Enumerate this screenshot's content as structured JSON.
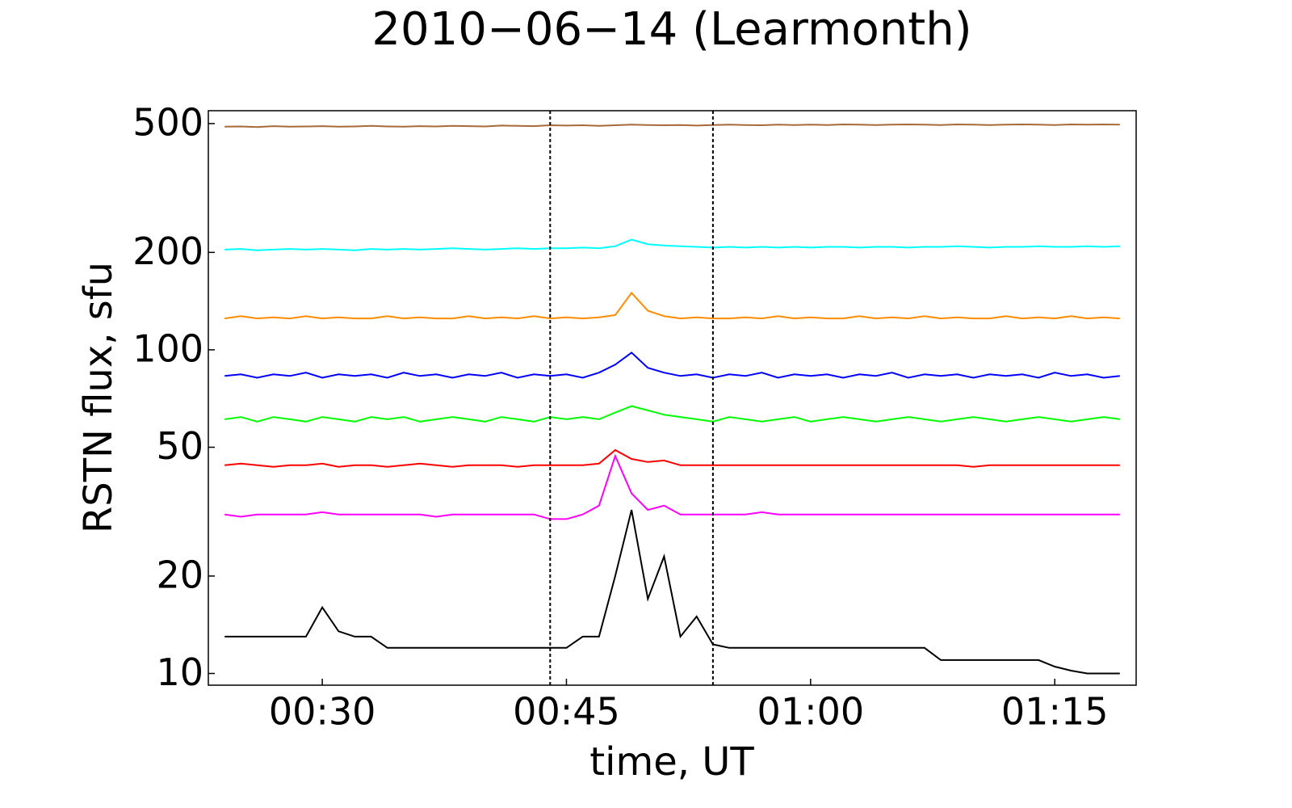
{
  "chart_data": {
    "type": "line",
    "title": "2010−06−14  (Learmonth)",
    "xlabel": "time, UT",
    "ylabel": "RSTN flux, sfu",
    "log_y": true,
    "grid": false,
    "xlim": [
      "00:23",
      "01:20"
    ],
    "xticks": [
      "00:30",
      "00:45",
      "01:00",
      "01:15"
    ],
    "ylim": [
      9.2,
      548
    ],
    "yticks": [
      10,
      20,
      50,
      100,
      200,
      500
    ],
    "vlines": [
      "00:44",
      "00:54"
    ],
    "x": [
      "00:24",
      "00:25",
      "00:26",
      "00:27",
      "00:28",
      "00:29",
      "00:30",
      "00:31",
      "00:32",
      "00:33",
      "00:34",
      "00:35",
      "00:36",
      "00:37",
      "00:38",
      "00:39",
      "00:40",
      "00:41",
      "00:42",
      "00:43",
      "00:44",
      "00:45",
      "00:46",
      "00:47",
      "00:48",
      "00:49",
      "00:50",
      "00:51",
      "00:52",
      "00:53",
      "00:54",
      "00:55",
      "00:56",
      "00:57",
      "00:58",
      "00:59",
      "01:00",
      "01:01",
      "01:02",
      "01:03",
      "01:04",
      "01:05",
      "01:06",
      "01:07",
      "01:08",
      "01:09",
      "01:10",
      "01:11",
      "01:12",
      "01:13",
      "01:14",
      "01:15",
      "01:16",
      "01:17",
      "01:18",
      "01:19"
    ],
    "series": [
      {
        "color": "#a86a3a",
        "values": [
          489,
          490,
          488,
          491,
          489,
          490,
          491,
          489,
          490,
          492,
          490,
          489,
          491,
          490,
          492,
          491,
          490,
          493,
          492,
          491,
          494,
          493,
          494,
          492,
          494,
          496,
          495,
          494,
          495,
          493,
          495,
          496,
          495,
          494,
          496,
          495,
          496,
          495,
          497,
          496,
          495,
          496,
          497,
          496,
          495,
          497,
          496,
          495,
          496,
          497,
          496,
          495,
          497,
          496,
          497,
          496
        ]
      },
      {
        "color": "#00ffff",
        "values": [
          204,
          205,
          203,
          204,
          205,
          204,
          205,
          204,
          203,
          205,
          204,
          205,
          204,
          205,
          206,
          205,
          204,
          205,
          206,
          205,
          206,
          206,
          207,
          206,
          209,
          219,
          212,
          210,
          209,
          208,
          207,
          208,
          207,
          208,
          207,
          208,
          207,
          208,
          208,
          207,
          208,
          208,
          207,
          208,
          208,
          209,
          208,
          207,
          208,
          208,
          209,
          208,
          208,
          209,
          208,
          209
        ]
      },
      {
        "color": "#ff8c00",
        "values": [
          125,
          127,
          125,
          126,
          125,
          127,
          125,
          126,
          125,
          125,
          127,
          125,
          126,
          125,
          125,
          127,
          125,
          126,
          125,
          127,
          125,
          126,
          125,
          126,
          128,
          150,
          132,
          127,
          125,
          126,
          125,
          125,
          126,
          125,
          127,
          125,
          126,
          125,
          125,
          127,
          125,
          126,
          125,
          127,
          125,
          126,
          125,
          125,
          127,
          125,
          126,
          125,
          127,
          125,
          126,
          125
        ]
      },
      {
        "color": "#0000ff",
        "values": [
          83,
          84,
          82,
          84,
          83,
          85,
          82,
          84,
          83,
          84,
          82,
          85,
          83,
          84,
          82,
          84,
          83,
          85,
          82,
          84,
          83,
          84,
          82,
          85,
          90,
          98,
          88,
          85,
          83,
          84,
          82,
          84,
          83,
          85,
          82,
          84,
          83,
          84,
          82,
          84,
          83,
          85,
          82,
          84,
          83,
          84,
          82,
          84,
          83,
          84,
          82,
          85,
          83,
          84,
          82,
          83
        ]
      },
      {
        "color": "#00ff00",
        "values": [
          61,
          62,
          60,
          62,
          61,
          60,
          62,
          61,
          60,
          62,
          61,
          62,
          60,
          61,
          62,
          61,
          60,
          62,
          61,
          60,
          62,
          61,
          62,
          61,
          64,
          67,
          65,
          63,
          62,
          61,
          60,
          62,
          61,
          60,
          61,
          62,
          60,
          61,
          62,
          61,
          60,
          61,
          62,
          61,
          60,
          61,
          62,
          61,
          60,
          61,
          62,
          61,
          60,
          61,
          62,
          61
        ]
      },
      {
        "color": "#ff0000",
        "values": [
          44,
          44.5,
          44,
          43.5,
          44,
          44,
          44.5,
          43.5,
          44,
          44,
          43.5,
          44,
          44.5,
          44,
          43.5,
          44,
          44,
          44,
          43.5,
          44,
          44,
          44,
          44,
          44.5,
          49,
          46,
          45,
          45.5,
          44,
          44,
          44,
          44,
          44,
          44,
          44,
          44,
          44,
          44,
          44,
          44,
          44,
          44,
          44,
          44,
          44,
          44,
          43.5,
          44,
          44,
          44,
          44,
          44,
          44,
          44,
          44,
          44
        ]
      },
      {
        "color": "#ff00ff",
        "values": [
          31,
          30.5,
          31,
          31,
          31,
          31,
          31.5,
          31,
          31,
          31,
          31,
          31,
          31,
          30.5,
          31,
          31,
          31,
          31,
          31,
          31,
          30,
          30,
          31,
          33,
          47,
          36,
          32,
          33,
          31,
          31,
          31,
          31,
          31,
          31.5,
          31,
          31,
          31,
          31,
          31,
          31,
          31,
          31,
          31,
          31,
          31,
          31,
          31,
          31,
          31,
          31,
          31,
          31,
          31,
          31,
          31,
          31
        ]
      },
      {
        "color": "#000000",
        "values": [
          13,
          13,
          13,
          13,
          13,
          13,
          16,
          13.5,
          13,
          13,
          12,
          12,
          12,
          12,
          12,
          12,
          12,
          12,
          12,
          12,
          12,
          12,
          13,
          13,
          20,
          32,
          17,
          23,
          13,
          15,
          12.3,
          12,
          12,
          12,
          12,
          12,
          12,
          12,
          12,
          12,
          12,
          12,
          12,
          12,
          11,
          11,
          11,
          11,
          11,
          11,
          11,
          10.5,
          10.2,
          10,
          10,
          10
        ]
      }
    ]
  }
}
